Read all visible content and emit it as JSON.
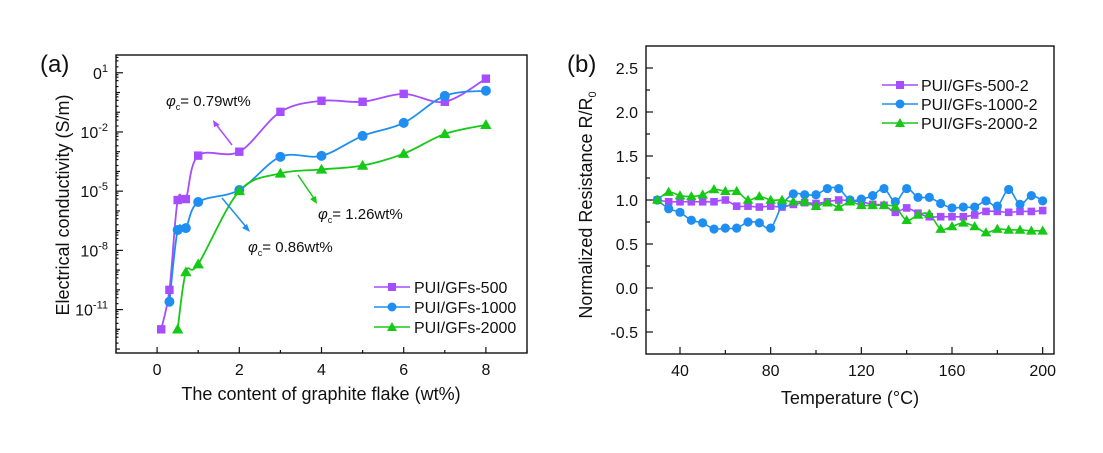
{
  "chart_data": [
    {
      "type": "line",
      "panel_label": "(a)",
      "title": "",
      "xlabel": "The content of graphite flake (wt%)",
      "ylabel": "Electrical conductivity (S/m)",
      "yscale": "log",
      "xlim": [
        -1,
        9
      ],
      "ylim_log10": [
        -13.2,
        1.9
      ],
      "x_ticks": [
        0,
        2,
        4,
        6,
        8
      ],
      "x_tick_labels": [
        "0",
        "2",
        "4",
        "6",
        "8"
      ],
      "y_ticks_log10": [
        1,
        -2,
        -5,
        -8,
        -11
      ],
      "y_tick_labels": [
        {
          "base": "0",
          "exp": "1"
        },
        {
          "base": "10",
          "exp": "-2"
        },
        {
          "base": "10",
          "exp": "-5"
        },
        {
          "base": "10",
          "exp": "-8"
        },
        {
          "base": "10",
          "exp": "-11"
        }
      ],
      "legend_position": "bottom-right",
      "series": [
        {
          "name": "PUI/GFs-500",
          "color": "#a64dff",
          "marker": "square",
          "x": [
            0.1,
            0.3,
            0.5,
            0.7,
            1,
            2,
            3,
            4,
            5,
            6,
            7,
            8
          ],
          "log10_y": [
            -12.0,
            -10.0,
            -5.45,
            -5.4,
            -3.2,
            -3.0,
            -0.98,
            -0.42,
            -0.47,
            -0.07,
            -0.47,
            0.7
          ]
        },
        {
          "name": "PUI/GFs-1000",
          "color": "#1e8ff0",
          "marker": "circle",
          "x": [
            0.3,
            0.5,
            0.7,
            1,
            2,
            3,
            4,
            5,
            6,
            7,
            8
          ],
          "log10_y": [
            -10.6,
            -6.97,
            -6.87,
            -5.55,
            -4.94,
            -3.26,
            -3.21,
            -2.2,
            -1.54,
            -0.17,
            0.09
          ]
        },
        {
          "name": "PUI/GFs-2000",
          "color": "#16c916",
          "marker": "triangle",
          "x": [
            0.5,
            0.7,
            1,
            2,
            3,
            4,
            5,
            6,
            7,
            8
          ],
          "log10_y": [
            -12.0,
            -9.1,
            -8.7,
            -4.99,
            -4.1,
            -3.9,
            -3.7,
            -3.1,
            -2.1,
            -1.64
          ]
        }
      ],
      "annotations": [
        {
          "prefix": "φ",
          "sub": "c",
          "text": "= 0.79wt%",
          "color": "#a64dff"
        },
        {
          "prefix": "φ",
          "sub": "c",
          "text": "= 0.86wt%",
          "color": "#1e8ff0"
        },
        {
          "prefix": "φ",
          "sub": "c",
          "text": "= 1.26wt%",
          "color": "#16c916"
        }
      ]
    },
    {
      "type": "line",
      "panel_label": "(b)",
      "title": "",
      "xlabel": "Temperature (°C)",
      "ylabel": "Normalized Resistance R/R",
      "ylabel_sub": "0",
      "xlim": [
        25,
        205
      ],
      "ylim": [
        -0.75,
        2.75
      ],
      "x_ticks": [
        40,
        80,
        120,
        160,
        200
      ],
      "x_tick_labels": [
        "40",
        "80",
        "120",
        "160",
        "200"
      ],
      "x_minor_ticks": [
        60,
        100,
        140,
        180
      ],
      "y_ticks": [
        -0.5,
        0.0,
        0.5,
        1.0,
        1.5,
        2.0,
        2.5
      ],
      "y_tick_labels": [
        "-0.5",
        "0.0",
        "0.5",
        "1.0",
        "1.5",
        "2.0",
        "2.5"
      ],
      "legend_position": "top-right",
      "x": [
        30,
        35,
        40,
        45,
        50,
        55,
        60,
        65,
        70,
        75,
        80,
        85,
        90,
        95,
        100,
        105,
        110,
        115,
        120,
        125,
        130,
        135,
        140,
        145,
        150,
        155,
        160,
        165,
        170,
        175,
        180,
        185,
        190,
        195,
        200
      ],
      "series": [
        {
          "name": "PUI/GFs-500-2",
          "color": "#a64dff",
          "marker": "square",
          "values": [
            1.0,
            0.98,
            0.98,
            0.98,
            0.98,
            0.98,
            1.0,
            0.93,
            0.93,
            0.92,
            0.93,
            0.92,
            0.95,
            0.97,
            0.96,
            0.98,
            1.0,
            0.99,
            0.98,
            0.95,
            0.94,
            0.86,
            0.91,
            0.85,
            0.81,
            0.81,
            0.81,
            0.81,
            0.83,
            0.87,
            0.87,
            0.86,
            0.87,
            0.87,
            0.88
          ]
        },
        {
          "name": "PUI/GFs-1000-2",
          "color": "#1e8ff0",
          "marker": "circle",
          "values": [
            1.0,
            0.9,
            0.86,
            0.77,
            0.74,
            0.67,
            0.68,
            0.68,
            0.75,
            0.74,
            0.68,
            0.94,
            1.07,
            1.06,
            1.06,
            1.13,
            1.13,
            1.0,
            1.01,
            1.05,
            1.13,
            0.98,
            1.13,
            1.03,
            1.03,
            0.96,
            0.91,
            0.92,
            0.92,
            0.99,
            0.93,
            1.12,
            0.95,
            1.05,
            0.99
          ]
        },
        {
          "name": "PUI/GFs-2000-2",
          "color": "#16c916",
          "marker": "triangle",
          "values": [
            1.0,
            1.09,
            1.05,
            1.04,
            1.06,
            1.12,
            1.1,
            1.1,
            1.0,
            1.04,
            1.0,
            1.0,
            0.98,
            0.98,
            0.93,
            0.97,
            0.92,
            0.98,
            0.94,
            0.94,
            0.94,
            0.92,
            0.77,
            0.83,
            0.84,
            0.67,
            0.7,
            0.74,
            0.7,
            0.63,
            0.67,
            0.66,
            0.66,
            0.65,
            0.65
          ]
        }
      ]
    }
  ]
}
